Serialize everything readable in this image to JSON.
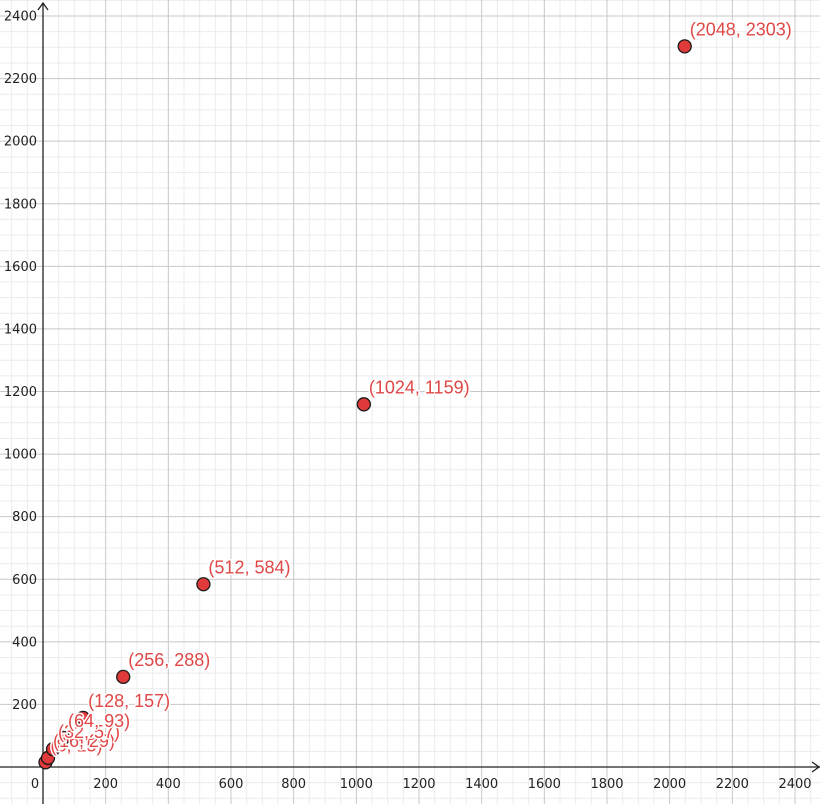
{
  "chart_data": {
    "type": "scatter",
    "title": "",
    "xlabel": "",
    "ylabel": "",
    "xlim": [
      -140,
      2500
    ],
    "ylim": [
      -100,
      2450
    ],
    "grid": true,
    "x_ticks": [
      0,
      200,
      400,
      600,
      800,
      1000,
      1200,
      1400,
      1600,
      1800,
      2000,
      2200,
      2400
    ],
    "y_ticks": [
      200,
      400,
      600,
      800,
      1000,
      1200,
      1400,
      1600,
      1800,
      2000,
      2200,
      2400
    ],
    "point_color": "#e03a3a",
    "label_color": "#e04747",
    "points": [
      {
        "x": 8,
        "y": 15,
        "label": "(8, 15)"
      },
      {
        "x": 16,
        "y": 29,
        "label": "(16, 29)"
      },
      {
        "x": 32,
        "y": 57,
        "label": "(32, 57)"
      },
      {
        "x": 64,
        "y": 93,
        "label": "(64, 93)"
      },
      {
        "x": 128,
        "y": 157,
        "label": "(128, 157)"
      },
      {
        "x": 256,
        "y": 288,
        "label": "(256, 288)"
      },
      {
        "x": 512,
        "y": 584,
        "label": "(512, 584)"
      },
      {
        "x": 1024,
        "y": 1159,
        "label": "(1024, 1159)"
      },
      {
        "x": 2048,
        "y": 2303,
        "label": "(2048, 2303)"
      }
    ]
  }
}
